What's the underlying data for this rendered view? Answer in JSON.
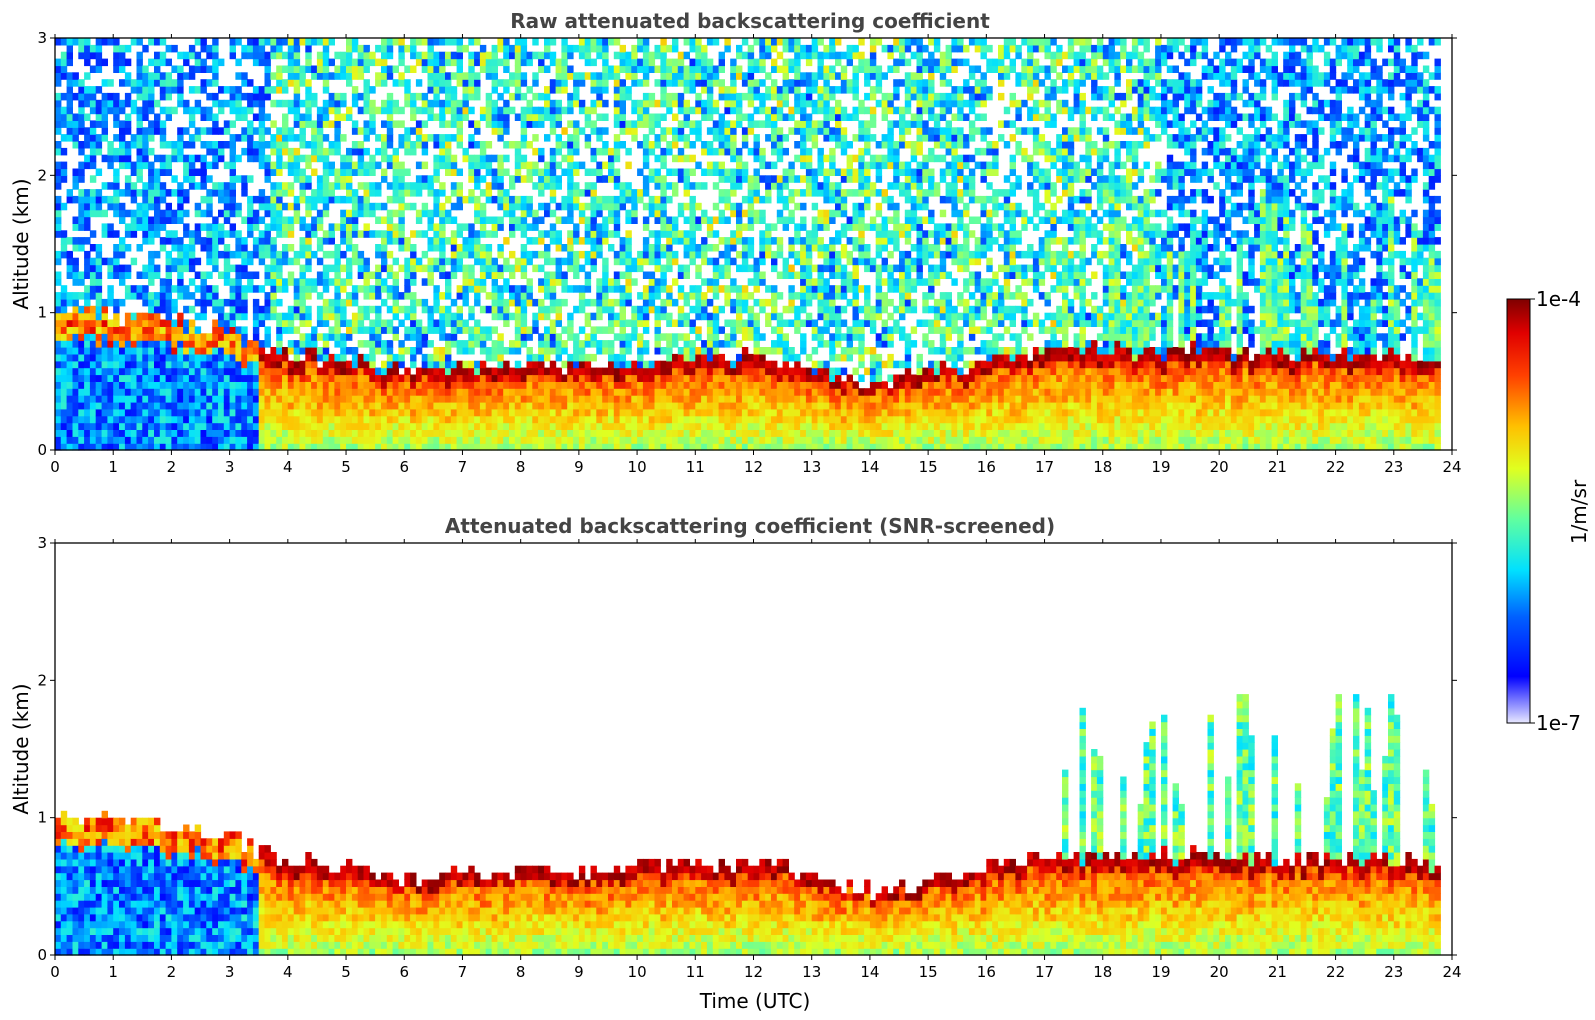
{
  "chart_data": [
    {
      "type": "heatmap",
      "title": "Raw attenuated backscattering coefficient",
      "xlabel": "",
      "ylabel": "Altitude (km)",
      "xlim": [
        0,
        24
      ],
      "ylim": [
        0,
        3
      ],
      "x_ticks": [
        "0",
        "1",
        "2",
        "3",
        "4",
        "5",
        "6",
        "7",
        "8",
        "9",
        "10",
        "11",
        "12",
        "13",
        "14",
        "15",
        "16",
        "17",
        "18",
        "19",
        "20",
        "21",
        "22",
        "23",
        "24"
      ],
      "y_ticks": [
        "0",
        "1",
        "2",
        "3"
      ],
      "color_scale": "log",
      "zlim": [
        "1e-7",
        "1e-4"
      ],
      "zlabel": "1/m/sr",
      "features": {
        "aerosol_layer_top_km": [
          {
            "time": 0.2,
            "top": 1.0
          },
          {
            "time": 1.0,
            "top": 0.95
          },
          {
            "time": 2.0,
            "top": 0.9
          },
          {
            "time": 3.0,
            "top": 0.85
          },
          {
            "time": 3.6,
            "top": 0.7
          },
          {
            "time": 6.0,
            "top": 0.55
          },
          {
            "time": 9.0,
            "top": 0.6
          },
          {
            "time": 12.0,
            "top": 0.65
          },
          {
            "time": 14.0,
            "top": 0.45
          },
          {
            "time": 17.0,
            "top": 0.7
          },
          {
            "time": 20.0,
            "top": 0.7
          },
          {
            "time": 23.8,
            "top": 0.65
          }
        ]
      }
    },
    {
      "type": "heatmap",
      "title": "Attenuated backscattering coefficient (SNR-screened)",
      "xlabel": "Time (UTC)",
      "ylabel": "Altitude (km)",
      "xlim": [
        0,
        24
      ],
      "ylim": [
        0,
        3
      ],
      "x_ticks": [
        "0",
        "1",
        "2",
        "3",
        "4",
        "5",
        "6",
        "7",
        "8",
        "9",
        "10",
        "11",
        "12",
        "13",
        "14",
        "15",
        "16",
        "17",
        "18",
        "19",
        "20",
        "21",
        "22",
        "23",
        "24"
      ],
      "y_ticks": [
        "0",
        "1",
        "2",
        "3"
      ],
      "color_scale": "log",
      "zlim": [
        "1e-7",
        "1e-4"
      ],
      "zlabel": "1/m/sr"
    }
  ],
  "colorbar": {
    "max_label": "1e-4",
    "min_label": "1e-7",
    "label": "1/m/sr",
    "colormap": [
      "#00007f",
      "#0000ff",
      "#007fff",
      "#00ffff",
      "#7fff7f",
      "#ffff00",
      "#ff7f00",
      "#ff0000",
      "#7f0000"
    ]
  },
  "colors": {
    "background": "#ffffff",
    "title": "#444444"
  }
}
